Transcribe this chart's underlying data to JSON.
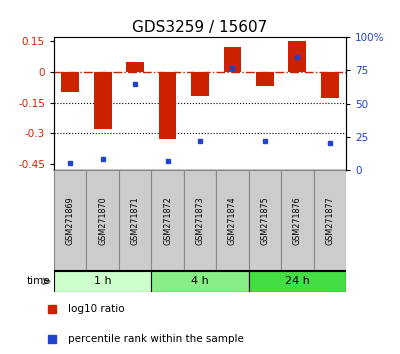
{
  "title": "GDS3259 / 15607",
  "samples": [
    "GSM271869",
    "GSM271870",
    "GSM271871",
    "GSM271872",
    "GSM271873",
    "GSM271874",
    "GSM271875",
    "GSM271876",
    "GSM271877"
  ],
  "log10_ratio": [
    -0.1,
    -0.28,
    0.05,
    -0.33,
    -0.12,
    0.12,
    -0.07,
    0.15,
    -0.13
  ],
  "percentile_rank": [
    5,
    8,
    65,
    7,
    22,
    77,
    22,
    85,
    20
  ],
  "time_groups": [
    {
      "label": "1 h",
      "start": 0,
      "end": 3,
      "color": "#ccffcc"
    },
    {
      "label": "4 h",
      "start": 3,
      "end": 6,
      "color": "#88ee88"
    },
    {
      "label": "24 h",
      "start": 6,
      "end": 9,
      "color": "#44dd44"
    }
  ],
  "ylim_left": [
    -0.48,
    0.17
  ],
  "ylim_right": [
    0,
    100
  ],
  "yticks_left": [
    0.15,
    0.0,
    -0.15,
    -0.3,
    -0.45
  ],
  "yticklabels_left": [
    "0.15",
    "0",
    "-0.15",
    "-0.3",
    "-0.45"
  ],
  "yticks_right": [
    100,
    75,
    50,
    25,
    0
  ],
  "yticklabels_right": [
    "100%",
    "75",
    "50",
    "25",
    "0"
  ],
  "bar_color": "#cc2200",
  "dot_color": "#2244cc",
  "bar_width": 0.55,
  "background_color": "#ffffff",
  "title_fontsize": 11,
  "label_cell_color": "#cccccc",
  "label_cell_border": "#888888"
}
